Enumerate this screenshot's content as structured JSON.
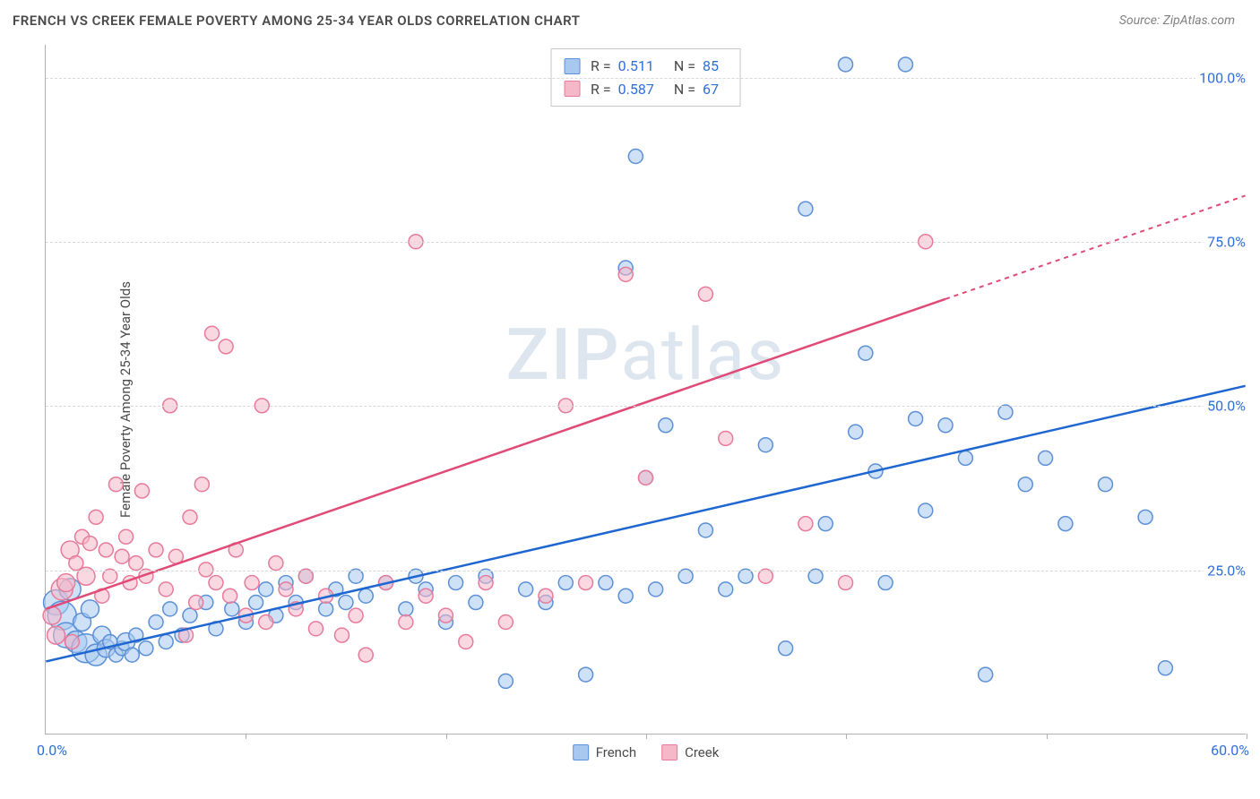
{
  "title": "FRENCH VS CREEK FEMALE POVERTY AMONG 25-34 YEAR OLDS CORRELATION CHART",
  "source": "Source: ZipAtlas.com",
  "watermark": "ZIPatlas",
  "y_axis_title": "Female Poverty Among 25-34 Year Olds",
  "chart": {
    "type": "scatter",
    "xlim": [
      0,
      60
    ],
    "ylim": [
      0,
      105
    ],
    "x_tick_positions": [
      0,
      10,
      20,
      30,
      40,
      50,
      60
    ],
    "x_label_min": "0.0%",
    "x_label_max": "60.0%",
    "y_gridlines": [
      25,
      50,
      75,
      100
    ],
    "y_labels": [
      "25.0%",
      "50.0%",
      "75.0%",
      "100.0%"
    ],
    "background_color": "#ffffff",
    "grid_color": "#d8d8d8",
    "axis_color": "#b0b0b0",
    "label_color": "#2e6fd9",
    "label_fontsize": 16,
    "title_fontsize": 15,
    "series": [
      {
        "name": "French",
        "color_fill": "#a8c8f0",
        "color_stroke": "#5b8fd6",
        "fill_opacity": 0.55,
        "trend_color": "#1e66d0",
        "trend_start": [
          0,
          11
        ],
        "trend_end": [
          60,
          53
        ],
        "R": 0.511,
        "N": 85,
        "marker_radius": 8,
        "points": [
          [
            0.5,
            20,
            14
          ],
          [
            0.8,
            18,
            16
          ],
          [
            1,
            15,
            14
          ],
          [
            1.2,
            22,
            12
          ],
          [
            1.5,
            14,
            12
          ],
          [
            1.8,
            17,
            10
          ],
          [
            2,
            13,
            16
          ],
          [
            2.2,
            19,
            10
          ],
          [
            2.5,
            12,
            12
          ],
          [
            2.8,
            15,
            10
          ],
          [
            3,
            13,
            10
          ],
          [
            3.2,
            14,
            8
          ],
          [
            3.5,
            12,
            8
          ],
          [
            3.8,
            13,
            8
          ],
          [
            4,
            14,
            10
          ],
          [
            4.3,
            12,
            8
          ],
          [
            4.5,
            15,
            8
          ],
          [
            5,
            13,
            8
          ],
          [
            5.5,
            17,
            8
          ],
          [
            6,
            14,
            8
          ],
          [
            6.2,
            19,
            8
          ],
          [
            6.8,
            15,
            8
          ],
          [
            7.2,
            18,
            8
          ],
          [
            8,
            20,
            8
          ],
          [
            8.5,
            16,
            8
          ],
          [
            9.3,
            19,
            8
          ],
          [
            10,
            17,
            8
          ],
          [
            10.5,
            20,
            8
          ],
          [
            11,
            22,
            8
          ],
          [
            11.5,
            18,
            8
          ],
          [
            12,
            23,
            8
          ],
          [
            12.5,
            20,
            8
          ],
          [
            13,
            24,
            8
          ],
          [
            14,
            19,
            8
          ],
          [
            14.5,
            22,
            8
          ],
          [
            15,
            20,
            8
          ],
          [
            15.5,
            24,
            8
          ],
          [
            16,
            21,
            8
          ],
          [
            17,
            23,
            8
          ],
          [
            18,
            19,
            8
          ],
          [
            18.5,
            24,
            8
          ],
          [
            19,
            22,
            8
          ],
          [
            20,
            17,
            8
          ],
          [
            20.5,
            23,
            8
          ],
          [
            21.5,
            20,
            8
          ],
          [
            22,
            24,
            8
          ],
          [
            23,
            8,
            8
          ],
          [
            24,
            22,
            8
          ],
          [
            25,
            20,
            8
          ],
          [
            26,
            23,
            8
          ],
          [
            27,
            9,
            8
          ],
          [
            28,
            23,
            8
          ],
          [
            29,
            21,
            8
          ],
          [
            29.5,
            88,
            8
          ],
          [
            29,
            71,
            8
          ],
          [
            30,
            39,
            8
          ],
          [
            30.5,
            22,
            8
          ],
          [
            31,
            47,
            8
          ],
          [
            32,
            24,
            8
          ],
          [
            33,
            31,
            8
          ],
          [
            34,
            22,
            8
          ],
          [
            35,
            24,
            8
          ],
          [
            36,
            44,
            8
          ],
          [
            37,
            13,
            8
          ],
          [
            38,
            80,
            8
          ],
          [
            38.5,
            24,
            8
          ],
          [
            39,
            32,
            8
          ],
          [
            40,
            102,
            8
          ],
          [
            40.5,
            46,
            8
          ],
          [
            41,
            58,
            8
          ],
          [
            41.5,
            40,
            8
          ],
          [
            42,
            23,
            8
          ],
          [
            43,
            102,
            8
          ],
          [
            43.5,
            48,
            8
          ],
          [
            44,
            34,
            8
          ],
          [
            45,
            47,
            8
          ],
          [
            46,
            42,
            8
          ],
          [
            47,
            9,
            8
          ],
          [
            48,
            49,
            8
          ],
          [
            49,
            38,
            8
          ],
          [
            50,
            42,
            8
          ],
          [
            51,
            32,
            8
          ],
          [
            53,
            38,
            8
          ],
          [
            55,
            33,
            8
          ],
          [
            56,
            10,
            8
          ]
        ]
      },
      {
        "name": "Creek",
        "color_fill": "#f5b8c8",
        "color_stroke": "#e77a9a",
        "fill_opacity": 0.55,
        "trend_color": "#e04a77",
        "trend_start": [
          0,
          19
        ],
        "trend_end": [
          60,
          82
        ],
        "trend_dash_after": 45,
        "R": 0.587,
        "N": 67,
        "marker_radius": 8,
        "points": [
          [
            0.3,
            18,
            10
          ],
          [
            0.5,
            15,
            10
          ],
          [
            0.8,
            22,
            12
          ],
          [
            1,
            23,
            10
          ],
          [
            1.2,
            28,
            10
          ],
          [
            1.3,
            14,
            8
          ],
          [
            1.5,
            26,
            8
          ],
          [
            1.8,
            30,
            8
          ],
          [
            2,
            24,
            10
          ],
          [
            2.2,
            29,
            8
          ],
          [
            2.5,
            33,
            8
          ],
          [
            2.8,
            21,
            8
          ],
          [
            3,
            28,
            8
          ],
          [
            3.2,
            24,
            8
          ],
          [
            3.5,
            38,
            8
          ],
          [
            3.8,
            27,
            8
          ],
          [
            4,
            30,
            8
          ],
          [
            4.2,
            23,
            8
          ],
          [
            4.5,
            26,
            8
          ],
          [
            4.8,
            37,
            8
          ],
          [
            5,
            24,
            8
          ],
          [
            5.5,
            28,
            8
          ],
          [
            6,
            22,
            8
          ],
          [
            6.2,
            50,
            8
          ],
          [
            6.5,
            27,
            8
          ],
          [
            7,
            15,
            8
          ],
          [
            7.2,
            33,
            8
          ],
          [
            7.5,
            20,
            8
          ],
          [
            7.8,
            38,
            8
          ],
          [
            8,
            25,
            8
          ],
          [
            8.3,
            61,
            8
          ],
          [
            8.5,
            23,
            8
          ],
          [
            9,
            59,
            8
          ],
          [
            9.2,
            21,
            8
          ],
          [
            9.5,
            28,
            8
          ],
          [
            10,
            18,
            8
          ],
          [
            10.3,
            23,
            8
          ],
          [
            10.8,
            50,
            8
          ],
          [
            11,
            17,
            8
          ],
          [
            11.5,
            26,
            8
          ],
          [
            12,
            22,
            8
          ],
          [
            12.5,
            19,
            8
          ],
          [
            13,
            24,
            8
          ],
          [
            13.5,
            16,
            8
          ],
          [
            14,
            21,
            8
          ],
          [
            14.8,
            15,
            8
          ],
          [
            15.5,
            18,
            8
          ],
          [
            16,
            12,
            8
          ],
          [
            17,
            23,
            8
          ],
          [
            18,
            17,
            8
          ],
          [
            18.5,
            75,
            8
          ],
          [
            19,
            21,
            8
          ],
          [
            20,
            18,
            8
          ],
          [
            21,
            14,
            8
          ],
          [
            22,
            23,
            8
          ],
          [
            23,
            17,
            8
          ],
          [
            25,
            21,
            8
          ],
          [
            26,
            50,
            8
          ],
          [
            27,
            23,
            8
          ],
          [
            29,
            70,
            8
          ],
          [
            30,
            39,
            8
          ],
          [
            33,
            67,
            8
          ],
          [
            34,
            45,
            8
          ],
          [
            36,
            24,
            8
          ],
          [
            38,
            32,
            8
          ],
          [
            44,
            75,
            8
          ],
          [
            40,
            23,
            8
          ]
        ]
      }
    ],
    "legend_stats": {
      "rows": [
        {
          "swatch_fill": "#a8c8f0",
          "swatch_stroke": "#5b8fd6",
          "R_label": "R =",
          "R": "0.511",
          "N_label": "N =",
          "N": "85"
        },
        {
          "swatch_fill": "#f5b8c8",
          "swatch_stroke": "#e77a9a",
          "R_label": "R =",
          "R": "0.587",
          "N_label": "N =",
          "N": "67"
        }
      ]
    },
    "bottom_legend": [
      {
        "swatch_fill": "#a8c8f0",
        "swatch_stroke": "#5b8fd6",
        "label": "French"
      },
      {
        "swatch_fill": "#f5b8c8",
        "swatch_stroke": "#e77a9a",
        "label": "Creek"
      }
    ]
  }
}
